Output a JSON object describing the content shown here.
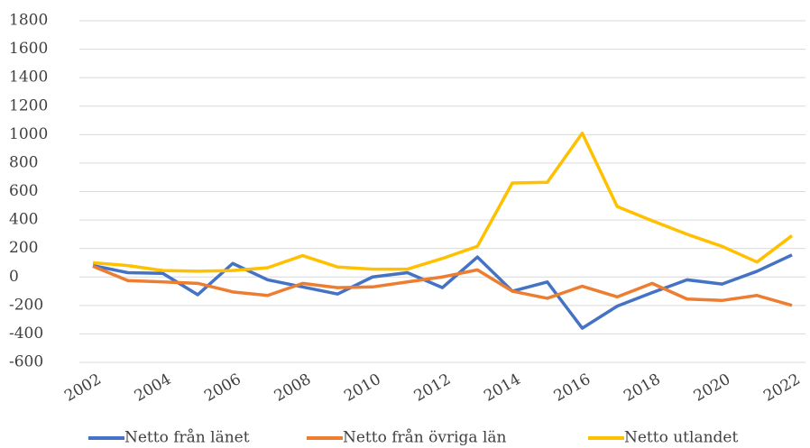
{
  "chart_data": {
    "type": "line",
    "x": [
      2002,
      2003,
      2004,
      2005,
      2006,
      2007,
      2008,
      2009,
      2010,
      2011,
      2012,
      2013,
      2014,
      2015,
      2016,
      2017,
      2018,
      2019,
      2020,
      2021,
      2022
    ],
    "xlim": [
      2002,
      2022
    ],
    "xticks": [
      2002,
      2004,
      2006,
      2008,
      2010,
      2012,
      2014,
      2016,
      2018,
      2020,
      2022
    ],
    "ylim": [
      -600,
      1800
    ],
    "yticks": [
      -600,
      -400,
      -200,
      0,
      200,
      400,
      600,
      800,
      1000,
      1200,
      1400,
      1600,
      1800
    ],
    "grid": true,
    "legend": "bottom",
    "series": [
      {
        "name": "Netto från länet",
        "color": "#4472c4",
        "values": [
          80,
          30,
          25,
          -125,
          95,
          -20,
          -70,
          -120,
          0,
          30,
          -75,
          140,
          -100,
          -35,
          -360,
          -205,
          -110,
          -20,
          -50,
          40,
          155
        ]
      },
      {
        "name": "Netto från övriga län",
        "color": "#ed7d31",
        "values": [
          75,
          -25,
          -35,
          -45,
          -105,
          -130,
          -45,
          -75,
          -70,
          -35,
          0,
          50,
          -100,
          -150,
          -65,
          -140,
          -45,
          -155,
          -165,
          -130,
          -200
        ]
      },
      {
        "name": "Netto utlandet",
        "color": "#ffc000",
        "values": [
          100,
          80,
          45,
          40,
          45,
          65,
          150,
          70,
          55,
          55,
          130,
          215,
          660,
          665,
          1010,
          495,
          395,
          300,
          215,
          105,
          290
        ]
      }
    ]
  }
}
